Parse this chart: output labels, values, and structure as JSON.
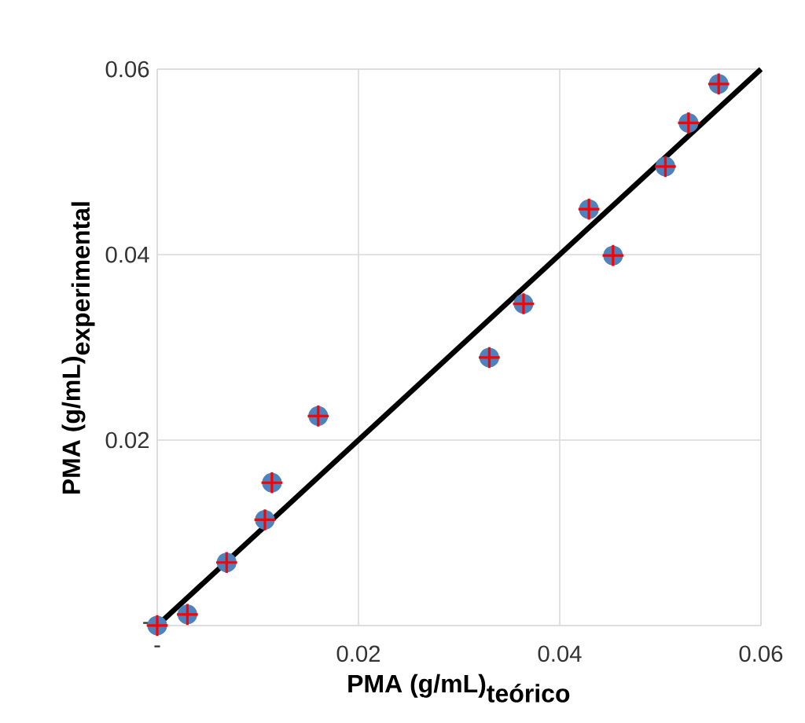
{
  "chart_data": {
    "type": "scatter",
    "xlabel": "\\textbf{PMA (g/mL)}_{\\textbf{teórico}}",
    "ylabel": "\\textbf{PMA (g/mL)}_{\\textbf{experimental}}",
    "xlim": [
      0,
      0.06
    ],
    "ylim": [
      0,
      0.06
    ],
    "xticks": [
      {
        "value": 0,
        "label": "-"
      },
      0.02,
      0.04,
      0.06
    ],
    "yticks": [
      {
        "value": 0,
        "label": "-"
      },
      0.02,
      0.04,
      0.06
    ],
    "grid": true,
    "series": [
      {
        "marker": "circle",
        "color": "#4f81bd",
        "x": [
          0,
          0.003,
          0.0069,
          0.0107,
          0.0114,
          0.016,
          0.033,
          0.0364,
          0.0429,
          0.0453,
          0.0505,
          0.0528,
          0.0558
        ],
        "values": [
          0,
          0.0012,
          0.0068,
          0.0114,
          0.0154,
          0.0226,
          0.0289,
          0.0347,
          0.0449,
          0.0399,
          0.0495,
          0.0542,
          0.0584
        ]
      },
      {
        "marker": "cross",
        "color": "#ff0000",
        "x": [
          0,
          0.003,
          0.0069,
          0.0107,
          0.0114,
          0.016,
          0.033,
          0.0364,
          0.0429,
          0.0453,
          0.0505,
          0.0528,
          0.0558
        ],
        "values": [
          0,
          0.0012,
          0.0068,
          0.0114,
          0.0154,
          0.0226,
          0.0289,
          0.0347,
          0.0449,
          0.0399,
          0.0495,
          0.0542,
          0.0584
        ]
      },
      {
        "type": "line",
        "marker": "none",
        "color": "#000000",
        "x": [
          0,
          0.06
        ],
        "values": [
          0,
          0.06
        ]
      }
    ]
  }
}
